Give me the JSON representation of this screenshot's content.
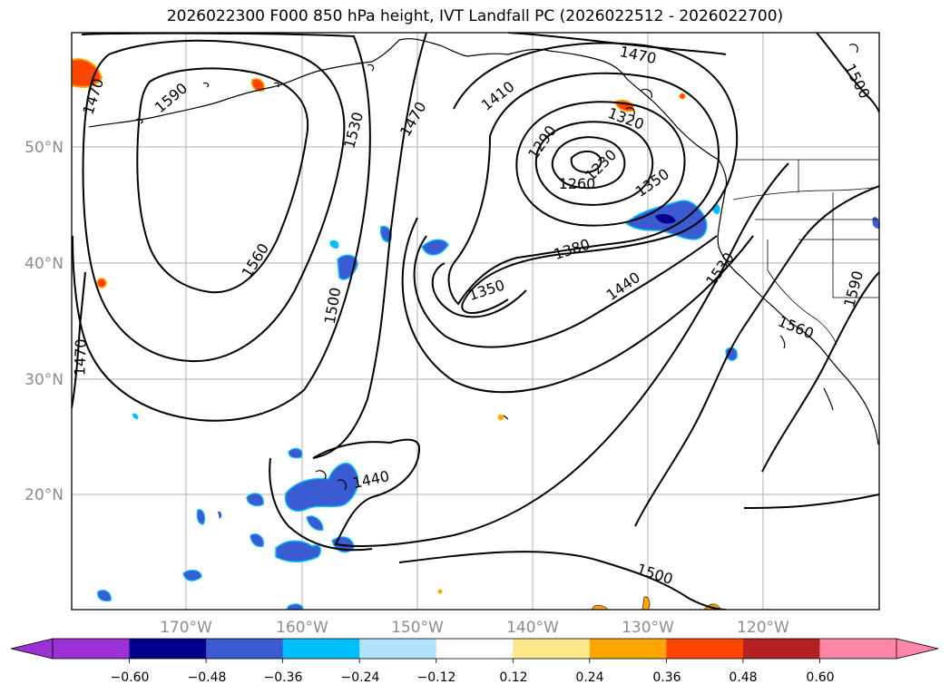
{
  "title": "2026022300 F000 850 hPa height, IVT Landfall PC (2026022512 - 2026022700)",
  "map": {
    "lon_ticks": [
      "170°W",
      "160°W",
      "150°W",
      "140°W",
      "130°W",
      "120°W"
    ],
    "lat_ticks": [
      "50°N",
      "40°N",
      "30°N",
      "20°N"
    ],
    "contour_labels": [
      "1470",
      "1590",
      "1530",
      "1470",
      "1410",
      "1470",
      "1320",
      "1290",
      "1230",
      "1260",
      "1350",
      "1500",
      "1560",
      "1500",
      "1350",
      "1380",
      "1440",
      "1530",
      "1590",
      "1560",
      "1470",
      "1440",
      "1500"
    ]
  },
  "colorbar": {
    "colors": [
      "#9b30d4",
      "#00008b",
      "#3a5bd1",
      "#00bfff",
      "#aee3fb",
      "#ffffff",
      "#fde98c",
      "#ffa500",
      "#ff4500",
      "#b22222",
      "#ff86a8",
      "#ff86a8"
    ],
    "labels": [
      "−0.60",
      "−0.48",
      "−0.36",
      "−0.24",
      "−0.12",
      "0.12",
      "0.24",
      "0.36",
      "0.48",
      "0.60"
    ]
  }
}
